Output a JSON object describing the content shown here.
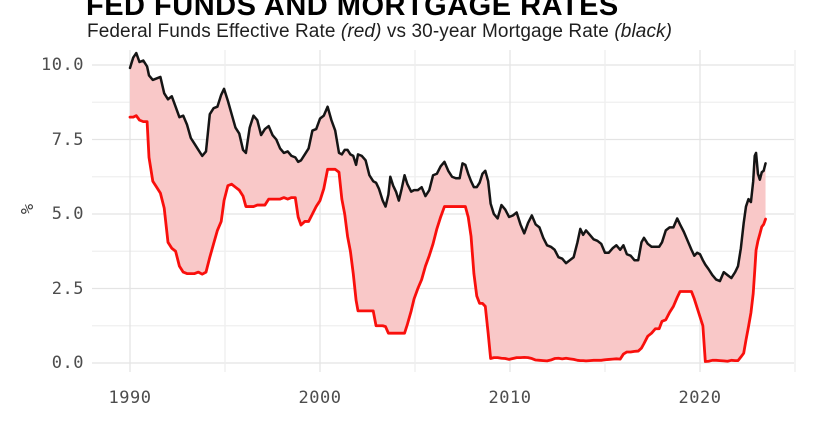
{
  "header": {
    "title": "FED FUNDS AND MORTGAGE RATES",
    "subtitle": {
      "part1": "Federal Funds Effective Rate ",
      "red_label": "(red)",
      "part2": " vs 30-year Mortgage Rate ",
      "black_label": "(black)"
    }
  },
  "chart_data": {
    "type": "line",
    "title": "FED FUNDS AND MORTGAGE RATES",
    "subtitle": "Federal Funds Effective Rate (red) vs 30-year Mortgage Rate (black)",
    "xlabel": "",
    "ylabel": "%",
    "xlim": [
      1988,
      2025.4
    ],
    "ylim": [
      -0.3,
      10.5
    ],
    "grid": "on",
    "legend_position": "none",
    "x_tick_labels": [
      "1990",
      "2000",
      "2010",
      "2020"
    ],
    "y_tick_labels": [
      "0.0",
      "2.5",
      "5.0",
      "7.5",
      "10.0"
    ],
    "x_gridlines": [
      1990,
      1995,
      2000,
      2005,
      2010,
      2015,
      2020,
      2025
    ],
    "y_gridlines": [
      0,
      1.25,
      2.5,
      3.75,
      5,
      6.25,
      7.5,
      8.75,
      10
    ],
    "x_major": [
      1990,
      2000,
      2010,
      2020
    ],
    "y_major": [
      0,
      2.5,
      5,
      7.5,
      10
    ],
    "fill_between_color": "#f9c8c8",
    "colors": {
      "fed_funds_line": "#f90f0c",
      "mortgage_line": "#151515",
      "grid_major": "#e4e4e4",
      "grid_minor": "#efefef",
      "tick_text": "#4d4d4d",
      "title_text": "#000000"
    },
    "x": [
      1990.0,
      1990.17,
      1990.33,
      1990.5,
      1990.7,
      1990.9,
      1991.0,
      1991.2,
      1991.4,
      1991.6,
      1991.8,
      1992.0,
      1992.2,
      1992.4,
      1992.6,
      1992.8,
      1993.0,
      1993.2,
      1993.4,
      1993.6,
      1993.8,
      1994.0,
      1994.2,
      1994.4,
      1994.6,
      1994.8,
      1994.95,
      1995.15,
      1995.35,
      1995.55,
      1995.75,
      1995.95,
      1996.1,
      1996.3,
      1996.5,
      1996.7,
      1996.9,
      1997.1,
      1997.3,
      1997.5,
      1997.7,
      1997.9,
      1998.1,
      1998.3,
      1998.5,
      1998.7,
      1998.85,
      1999.0,
      1999.2,
      1999.4,
      1999.6,
      1999.8,
      2000.0,
      2000.2,
      2000.4,
      2000.6,
      2000.8,
      2001.0,
      2001.15,
      2001.3,
      2001.45,
      2001.6,
      2001.75,
      2001.9,
      2002.0,
      2002.2,
      2002.4,
      2002.6,
      2002.8,
      2002.95,
      2003.1,
      2003.3,
      2003.45,
      2003.6,
      2003.7,
      2003.85,
      2004.0,
      2004.15,
      2004.3,
      2004.45,
      2004.6,
      2004.8,
      2004.95,
      2005.15,
      2005.35,
      2005.55,
      2005.75,
      2005.95,
      2006.15,
      2006.35,
      2006.55,
      2006.75,
      2006.95,
      2007.15,
      2007.35,
      2007.5,
      2007.65,
      2007.8,
      2007.95,
      2008.1,
      2008.25,
      2008.4,
      2008.55,
      2008.7,
      2008.85,
      2008.98,
      2009.15,
      2009.35,
      2009.55,
      2009.75,
      2009.95,
      2010.15,
      2010.35,
      2010.55,
      2010.75,
      2010.95,
      2011.15,
      2011.35,
      2011.55,
      2011.75,
      2011.95,
      2012.15,
      2012.35,
      2012.55,
      2012.75,
      2012.95,
      2013.15,
      2013.35,
      2013.55,
      2013.7,
      2013.85,
      2014.0,
      2014.2,
      2014.4,
      2014.6,
      2014.8,
      2015.0,
      2015.2,
      2015.4,
      2015.6,
      2015.8,
      2015.97,
      2016.15,
      2016.35,
      2016.55,
      2016.75,
      2016.92,
      2017.05,
      2017.25,
      2017.45,
      2017.65,
      2017.85,
      2018.0,
      2018.2,
      2018.4,
      2018.6,
      2018.8,
      2018.95,
      2019.15,
      2019.35,
      2019.55,
      2019.7,
      2019.85,
      2020.0,
      2020.15,
      2020.28,
      2020.45,
      2020.65,
      2020.85,
      2021.05,
      2021.25,
      2021.45,
      2021.65,
      2021.85,
      2022.0,
      2022.15,
      2022.3,
      2022.42,
      2022.55,
      2022.68,
      2022.8,
      2022.88,
      2022.95,
      2023.05,
      2023.15,
      2023.25,
      2023.35,
      2023.45
    ],
    "series": [
      {
        "name": "Federal Funds Effective Rate",
        "color": "#f90f0c",
        "values": [
          8.25,
          8.25,
          8.3,
          8.15,
          8.1,
          8.1,
          6.9,
          6.1,
          5.9,
          5.7,
          5.2,
          4.05,
          3.85,
          3.75,
          3.25,
          3.05,
          3.0,
          3.0,
          3.0,
          3.05,
          2.98,
          3.05,
          3.55,
          4.0,
          4.45,
          4.75,
          5.45,
          5.95,
          6.0,
          5.9,
          5.8,
          5.6,
          5.25,
          5.25,
          5.25,
          5.3,
          5.3,
          5.3,
          5.5,
          5.5,
          5.5,
          5.5,
          5.55,
          5.5,
          5.55,
          5.55,
          4.9,
          4.63,
          4.75,
          4.75,
          5.0,
          5.25,
          5.45,
          5.85,
          6.5,
          6.5,
          6.5,
          6.4,
          5.5,
          5.0,
          4.25,
          3.75,
          3.0,
          2.1,
          1.75,
          1.75,
          1.75,
          1.75,
          1.75,
          1.25,
          1.25,
          1.25,
          1.22,
          1.0,
          1.0,
          1.0,
          1.0,
          1.0,
          1.0,
          1.0,
          1.3,
          1.75,
          2.15,
          2.5,
          2.8,
          3.25,
          3.6,
          4.0,
          4.5,
          4.9,
          5.25,
          5.25,
          5.25,
          5.25,
          5.25,
          5.25,
          5.25,
          4.9,
          4.25,
          3.0,
          2.25,
          2.0,
          2.0,
          1.9,
          1.0,
          0.15,
          0.18,
          0.18,
          0.16,
          0.15,
          0.12,
          0.15,
          0.18,
          0.18,
          0.19,
          0.18,
          0.15,
          0.1,
          0.09,
          0.08,
          0.07,
          0.1,
          0.15,
          0.16,
          0.14,
          0.16,
          0.14,
          0.12,
          0.09,
          0.08,
          0.08,
          0.07,
          0.08,
          0.09,
          0.09,
          0.09,
          0.11,
          0.12,
          0.13,
          0.14,
          0.13,
          0.3,
          0.37,
          0.37,
          0.39,
          0.4,
          0.5,
          0.65,
          0.9,
          1.0,
          1.15,
          1.15,
          1.4,
          1.45,
          1.7,
          1.9,
          2.2,
          2.4,
          2.4,
          2.4,
          2.4,
          2.15,
          1.85,
          1.55,
          1.25,
          0.05,
          0.06,
          0.09,
          0.09,
          0.08,
          0.07,
          0.06,
          0.09,
          0.08,
          0.08,
          0.2,
          0.33,
          0.77,
          1.21,
          1.68,
          2.33,
          3.08,
          3.78,
          4.1,
          4.33,
          4.57,
          4.65,
          4.83
        ]
      },
      {
        "name": "30-year Mortgage Rate",
        "color": "#151515",
        "values": [
          9.9,
          10.25,
          10.4,
          10.1,
          10.15,
          9.95,
          9.65,
          9.5,
          9.55,
          9.6,
          9.05,
          8.85,
          8.95,
          8.6,
          8.25,
          8.3,
          8.0,
          7.55,
          7.35,
          7.15,
          6.95,
          7.1,
          8.35,
          8.55,
          8.6,
          9.0,
          9.2,
          8.8,
          8.35,
          7.9,
          7.7,
          7.15,
          7.05,
          7.9,
          8.3,
          8.15,
          7.65,
          7.85,
          7.95,
          7.65,
          7.5,
          7.2,
          7.05,
          7.1,
          6.95,
          6.9,
          6.75,
          6.8,
          7.0,
          7.2,
          7.8,
          7.85,
          8.2,
          8.3,
          8.6,
          8.15,
          7.8,
          7.05,
          7.0,
          7.15,
          7.15,
          7.0,
          6.95,
          6.65,
          7.0,
          6.95,
          6.8,
          6.3,
          6.1,
          6.05,
          5.85,
          5.45,
          5.25,
          5.65,
          6.25,
          5.95,
          5.75,
          5.45,
          5.85,
          6.3,
          6.0,
          5.75,
          5.8,
          5.8,
          5.9,
          5.6,
          5.8,
          6.3,
          6.35,
          6.6,
          6.75,
          6.45,
          6.25,
          6.2,
          6.2,
          6.7,
          6.65,
          6.35,
          6.1,
          5.9,
          5.9,
          6.05,
          6.35,
          6.45,
          6.1,
          5.35,
          5.0,
          4.85,
          5.3,
          5.15,
          4.9,
          4.95,
          5.05,
          4.65,
          4.35,
          4.7,
          4.95,
          4.65,
          4.55,
          4.2,
          3.95,
          3.9,
          3.8,
          3.55,
          3.5,
          3.35,
          3.45,
          3.55,
          4.05,
          4.5,
          4.3,
          4.45,
          4.3,
          4.15,
          4.1,
          4.0,
          3.7,
          3.7,
          3.85,
          3.95,
          3.8,
          3.95,
          3.65,
          3.6,
          3.45,
          3.45,
          4.05,
          4.2,
          4.0,
          3.9,
          3.9,
          3.9,
          4.05,
          4.45,
          4.55,
          4.55,
          4.85,
          4.65,
          4.4,
          4.1,
          3.8,
          3.6,
          3.7,
          3.65,
          3.45,
          3.3,
          3.15,
          2.95,
          2.8,
          2.75,
          3.05,
          2.95,
          2.85,
          3.05,
          3.25,
          3.85,
          4.7,
          5.25,
          5.5,
          5.4,
          6.1,
          6.95,
          7.05,
          6.35,
          6.15,
          6.4,
          6.45,
          6.7
        ]
      }
    ]
  }
}
